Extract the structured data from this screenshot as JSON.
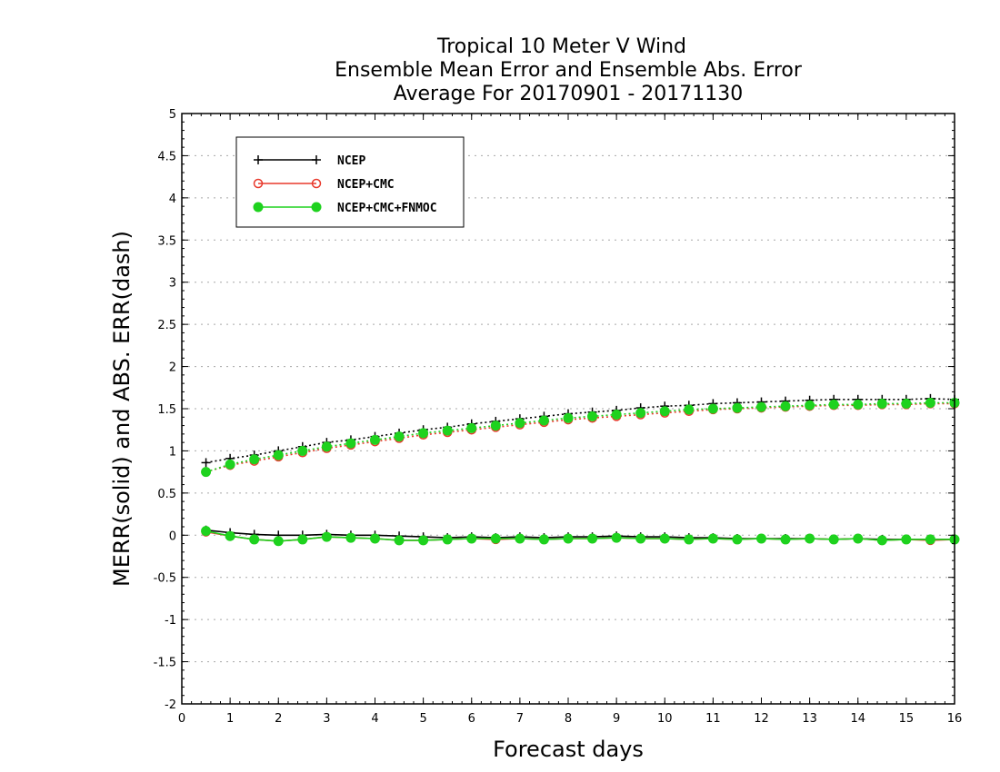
{
  "chart_data": {
    "type": "line",
    "title": [
      "Tropical 10 Meter V Wind",
      "Ensemble Mean Error and Ensemble Abs. Error",
      "Average For 20170901 - 20171130"
    ],
    "xlabel": "Forecast days",
    "ylabel": "MERR(solid) and ABS. ERR(dash)",
    "xlim": [
      0,
      16
    ],
    "ylim": [
      -2,
      5
    ],
    "xticks": [
      0,
      1,
      2,
      3,
      4,
      5,
      6,
      7,
      8,
      9,
      10,
      11,
      12,
      13,
      14,
      15,
      16
    ],
    "xtick_labels": [
      "0",
      "1",
      "2",
      "3",
      "4",
      "5",
      "6",
      "7",
      "8",
      "9",
      "10",
      "11",
      "12",
      "13",
      "14",
      "15",
      "16"
    ],
    "yticks": [
      -2,
      -1.5,
      -1,
      -0.5,
      0,
      0.5,
      1,
      1.5,
      2,
      2.5,
      3,
      3.5,
      4,
      4.5,
      5
    ],
    "ytick_labels": [
      "-2",
      "-1.5",
      "-1",
      "-0.5",
      "0",
      "0.5",
      "1",
      "1.5",
      "2",
      "2.5",
      "3",
      "3.5",
      "4",
      "4.5",
      "5"
    ],
    "grid": "horizontal dotted",
    "legend_position": "top-left",
    "x": [
      0.5,
      1,
      1.5,
      2,
      2.5,
      3,
      3.5,
      4,
      4.5,
      5,
      5.5,
      6,
      6.5,
      7,
      7.5,
      8,
      8.5,
      9,
      9.5,
      10,
      10.5,
      11,
      11.5,
      12,
      12.5,
      13,
      13.5,
      14,
      14.5,
      15,
      15.5,
      16
    ],
    "series": [
      {
        "name": "NCEP",
        "color": "#000000",
        "marker": "plus",
        "merr": [
          0.06,
          0.03,
          0.01,
          0.0,
          0.0,
          0.01,
          0.0,
          0.0,
          -0.01,
          -0.02,
          -0.03,
          -0.02,
          -0.03,
          -0.02,
          -0.03,
          -0.02,
          -0.02,
          -0.01,
          -0.02,
          -0.02,
          -0.03,
          -0.03,
          -0.04,
          -0.04,
          -0.04,
          -0.04,
          -0.05,
          -0.04,
          -0.05,
          -0.05,
          -0.05,
          -0.05
        ],
        "abs_err": [
          0.86,
          0.91,
          0.95,
          1.0,
          1.05,
          1.1,
          1.13,
          1.17,
          1.21,
          1.25,
          1.28,
          1.32,
          1.35,
          1.38,
          1.41,
          1.44,
          1.46,
          1.48,
          1.51,
          1.53,
          1.54,
          1.56,
          1.57,
          1.58,
          1.59,
          1.6,
          1.61,
          1.61,
          1.61,
          1.61,
          1.62,
          1.61
        ]
      },
      {
        "name": "NCEP+CMC",
        "color": "#e8392c",
        "marker": "open-circle",
        "merr": [
          0.04,
          -0.01,
          -0.05,
          -0.07,
          -0.05,
          -0.02,
          -0.03,
          -0.04,
          -0.06,
          -0.06,
          -0.05,
          -0.04,
          -0.05,
          -0.04,
          -0.05,
          -0.04,
          -0.04,
          -0.03,
          -0.04,
          -0.04,
          -0.05,
          -0.04,
          -0.05,
          -0.04,
          -0.05,
          -0.04,
          -0.05,
          -0.04,
          -0.06,
          -0.05,
          -0.06,
          -0.05
        ],
        "abs_err": [
          0.75,
          0.83,
          0.88,
          0.93,
          0.98,
          1.03,
          1.07,
          1.11,
          1.15,
          1.19,
          1.22,
          1.25,
          1.28,
          1.31,
          1.34,
          1.37,
          1.39,
          1.41,
          1.43,
          1.45,
          1.47,
          1.49,
          1.5,
          1.51,
          1.52,
          1.53,
          1.54,
          1.54,
          1.55,
          1.55,
          1.56,
          1.56
        ]
      },
      {
        "name": "NCEP+CMC+FNMOC",
        "color": "#1ed21e",
        "marker": "filled-circle",
        "merr": [
          0.05,
          -0.01,
          -0.05,
          -0.07,
          -0.05,
          -0.02,
          -0.03,
          -0.04,
          -0.06,
          -0.06,
          -0.05,
          -0.04,
          -0.04,
          -0.04,
          -0.05,
          -0.04,
          -0.04,
          -0.03,
          -0.04,
          -0.04,
          -0.05,
          -0.04,
          -0.05,
          -0.04,
          -0.05,
          -0.04,
          -0.05,
          -0.04,
          -0.06,
          -0.05,
          -0.05,
          -0.05
        ],
        "abs_err": [
          0.75,
          0.84,
          0.9,
          0.95,
          1.0,
          1.05,
          1.09,
          1.13,
          1.17,
          1.21,
          1.24,
          1.27,
          1.3,
          1.33,
          1.36,
          1.39,
          1.41,
          1.43,
          1.45,
          1.47,
          1.49,
          1.5,
          1.51,
          1.52,
          1.53,
          1.54,
          1.55,
          1.55,
          1.56,
          1.56,
          1.57,
          1.57
        ]
      }
    ]
  }
}
